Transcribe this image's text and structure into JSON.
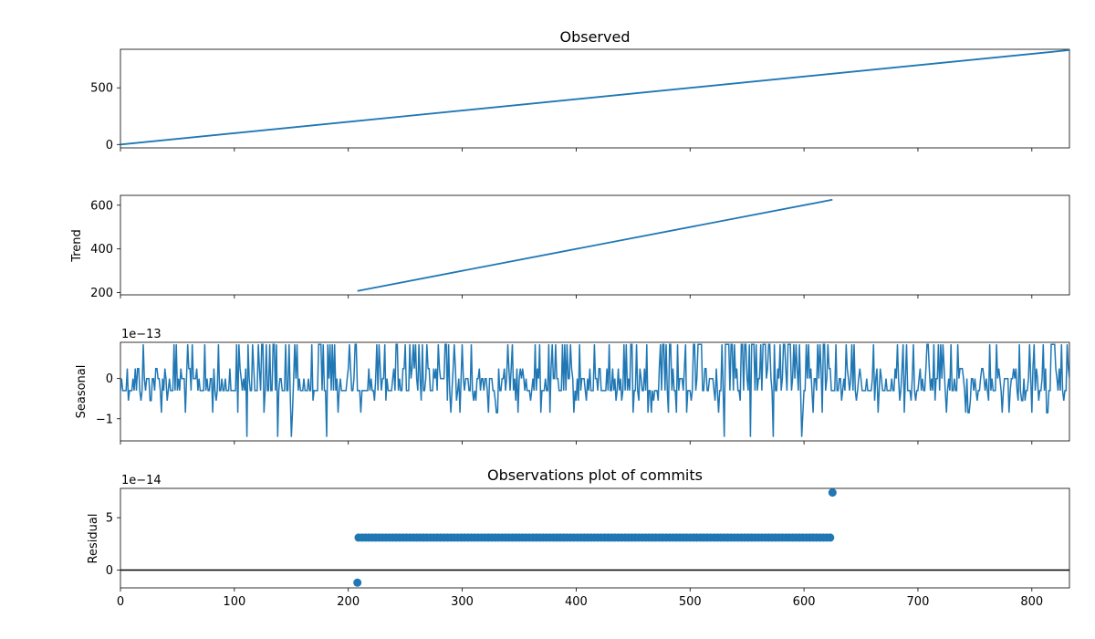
{
  "chart_data": [
    {
      "type": "line",
      "title": "Observed",
      "ylabel": "",
      "xlim": [
        0,
        833
      ],
      "ylim": [
        -30,
        840
      ],
      "yticks": [
        0,
        500
      ],
      "yticklabels": [
        "0",
        "500"
      ],
      "x_tick_values": [
        0,
        100,
        200,
        300,
        400,
        500,
        600,
        700,
        800
      ],
      "show_xticklabels": false,
      "scale_label": "",
      "series": [
        {
          "points": [
            [
              0,
              0
            ],
            [
              833,
              833
            ]
          ]
        }
      ]
    },
    {
      "type": "line",
      "title": "",
      "ylabel": "Trend",
      "xlim": [
        0,
        833
      ],
      "ylim": [
        190,
        645
      ],
      "yticks": [
        200,
        400,
        600
      ],
      "yticklabels": [
        "200",
        "400",
        "600"
      ],
      "x_tick_values": [
        0,
        100,
        200,
        300,
        400,
        500,
        600,
        700,
        800
      ],
      "show_xticklabels": false,
      "scale_label": "",
      "series": [
        {
          "points": [
            [
              208,
              208
            ],
            [
              625,
              625
            ]
          ]
        }
      ]
    },
    {
      "type": "line",
      "title": "",
      "ylabel": "Seasonal",
      "xlim": [
        0,
        833
      ],
      "ylim": [
        -1.55,
        0.9
      ],
      "yticks": [
        -1,
        0
      ],
      "yticklabels": [
        "−1",
        "0"
      ],
      "x_tick_values": [
        0,
        100,
        200,
        300,
        400,
        500,
        600,
        700,
        800
      ],
      "show_xticklabels": false,
      "scale_label": "1e−13",
      "series": [
        {
          "levels": [
            0.85,
            0.25,
            0,
            -0.3,
            -0.55,
            -0.85,
            -1.45
          ],
          "weights": [
            12,
            15,
            22,
            38,
            6,
            5,
            2
          ],
          "dense_regions": [
            [
              110,
              190
            ],
            [
              440,
              510
            ],
            [
              530,
              625
            ]
          ],
          "rare_spikes": [
            [
              111,
              -1.45
            ],
            [
              138,
              -1.45
            ],
            [
              150,
              -1.45
            ],
            [
              181,
              -1.45
            ],
            [
              530,
              -1.45
            ],
            [
              553,
              -1.45
            ],
            [
              573,
              -1.45
            ],
            [
              598,
              -1.45
            ]
          ]
        }
      ]
    },
    {
      "type": "scatter",
      "title": "Observations plot of commits",
      "ylabel": "Residual",
      "xlim": [
        0,
        833
      ],
      "ylim": [
        -1.7,
        7.8
      ],
      "yticks": [
        0,
        5
      ],
      "yticklabels": [
        "0",
        "5"
      ],
      "x_tick_values": [
        0,
        100,
        200,
        300,
        400,
        500,
        600,
        700,
        800
      ],
      "xticklabels": [
        "0",
        "100",
        "200",
        "300",
        "400",
        "500",
        "600",
        "700",
        "800"
      ],
      "show_xticklabels": true,
      "scale_label": "1e−14",
      "zero_line": true,
      "series": [
        {
          "x_range": [
            208,
            625
          ],
          "y": 3.1,
          "outliers": [
            [
              208,
              -1.2
            ],
            [
              625,
              7.4
            ]
          ]
        }
      ]
    }
  ],
  "colors": {
    "series": "#1f77b4",
    "axis": "#000000",
    "zero_line": "#000000"
  }
}
